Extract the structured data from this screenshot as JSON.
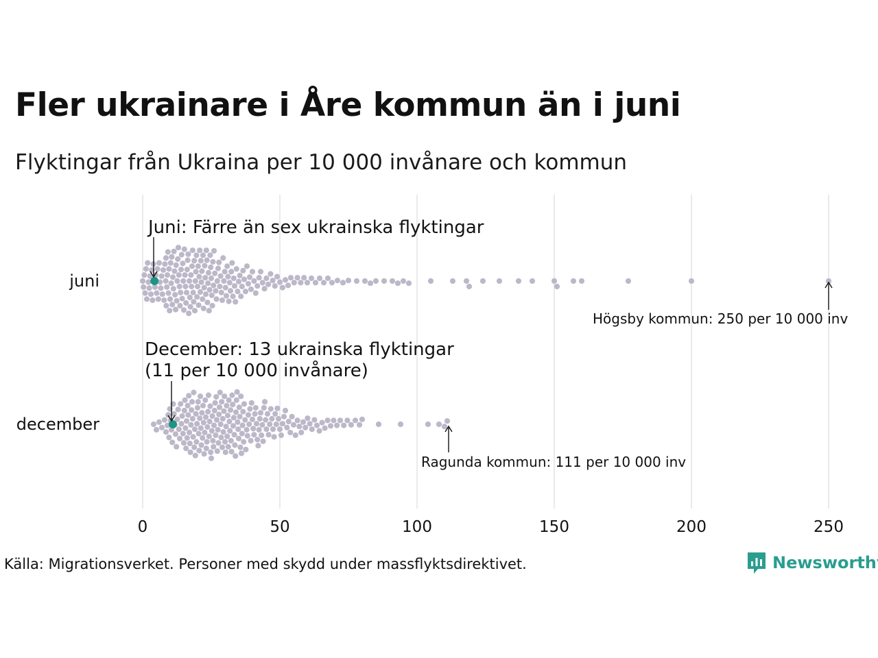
{
  "title": "Fler ukrainare i Åre kommun än i juni",
  "subtitle": "Flyktingar från Ukraina per 10 000 invånare och kommun",
  "source": "Källa: Migrationsverket. Personer med skydd under massflyktsdirektivet.",
  "brand": {
    "name": "Newsworthy",
    "color": "#2a9d8f"
  },
  "colors": {
    "dot": "#bcb8c9",
    "highlight": "#1f9486",
    "grid": "#d6d6d6"
  },
  "chart_data": {
    "type": "scatter",
    "subtype": "beeswarm",
    "x_ticks": [
      "0",
      "50",
      "100",
      "150",
      "200",
      "250"
    ],
    "x_tick_values": [
      0,
      50,
      100,
      150,
      200,
      250
    ],
    "xlim": [
      0,
      255
    ],
    "grid": "vertical",
    "categories": [
      "juni",
      "december"
    ],
    "series": [
      {
        "category": "juni",
        "highlight": {
          "value": 4.3
        },
        "values": [
          0.0,
          0.3,
          0.6,
          0.9,
          1.2,
          1.5,
          1.8,
          2.1,
          2.4,
          2.7,
          3.0,
          3.3,
          3.6,
          3.9,
          4.2,
          4.5,
          4.8,
          5.1,
          5.4,
          5.7,
          6.0,
          6.3,
          6.6,
          6.9,
          7.2,
          7.5,
          7.8,
          8.1,
          8.4,
          8.5,
          8.6,
          8.8,
          9.0,
          9.2,
          9.4,
          9.6,
          9.8,
          10.0,
          10.2,
          10.4,
          10.6,
          10.8,
          11.0,
          11.2,
          11.4,
          11.6,
          11.8,
          12.0,
          12.2,
          12.4,
          12.6,
          12.8,
          13.0,
          13.2,
          13.4,
          13.6,
          13.8,
          14.0,
          14.2,
          14.4,
          14.6,
          14.8,
          15.0,
          15.2,
          15.4,
          15.6,
          15.8,
          16.0,
          16.2,
          16.4,
          16.6,
          16.8,
          17.0,
          17.2,
          17.4,
          17.6,
          17.8,
          18.0,
          18.2,
          18.4,
          18.6,
          18.8,
          19.0,
          19.2,
          19.4,
          19.6,
          19.8,
          20.0,
          20.2,
          20.4,
          20.6,
          20.8,
          21.0,
          21.2,
          21.4,
          21.6,
          21.8,
          22.0,
          22.2,
          22.4,
          22.6,
          22.8,
          23.0,
          23.2,
          23.4,
          23.6,
          23.8,
          24.0,
          24.2,
          24.4,
          24.6,
          24.8,
          25.0,
          25.2,
          25.4,
          25.6,
          25.8,
          26.0,
          26.3,
          26.6,
          26.9,
          27.2,
          27.5,
          27.8,
          28.1,
          28.4,
          28.7,
          29.0,
          29.3,
          29.6,
          29.9,
          30.2,
          30.5,
          30.8,
          31.1,
          31.4,
          31.7,
          32.0,
          32.3,
          32.6,
          32.9,
          33.2,
          33.5,
          33.8,
          34.2,
          34.6,
          35.0,
          35.4,
          35.8,
          36.2,
          36.6,
          37.0,
          37.5,
          38.0,
          38.5,
          39.0,
          39.5,
          40.0,
          40.6,
          41.2,
          41.8,
          42.4,
          43.0,
          43.7,
          44.4,
          45.1,
          45.8,
          46.6,
          47.4,
          48.2,
          49.0,
          50.0,
          51.0,
          52.0,
          53.0,
          54.0,
          55.2,
          56.4,
          57.6,
          58.8,
          60.0,
          61.5,
          63.0,
          64.5,
          66.0,
          67.5,
          69.0,
          71.0,
          73.0,
          75.0,
          78.0,
          81.0,
          83.0,
          85.0,
          88.0,
          91.0,
          93.0,
          95.0,
          97.0,
          105.0,
          113.0,
          118.0,
          119.0,
          124.0,
          130.0,
          137.0,
          142.0,
          150.0,
          151.0,
          157.0,
          160.0,
          177.0,
          200.0,
          250.0
        ]
      },
      {
        "category": "december",
        "highlight": {
          "value": 11
        },
        "values": [
          4.0,
          5.0,
          6.0,
          7.0,
          8.0,
          8.5,
          9.0,
          9.3,
          9.6,
          9.9,
          10.2,
          10.5,
          10.8,
          11.1,
          11.4,
          11.7,
          12.0,
          12.3,
          12.6,
          12.9,
          13.2,
          13.5,
          13.8,
          14.1,
          14.4,
          14.7,
          15.0,
          15.2,
          15.4,
          15.6,
          15.8,
          16.0,
          16.2,
          16.4,
          16.6,
          16.8,
          17.0,
          17.2,
          17.4,
          17.6,
          17.8,
          18.0,
          18.2,
          18.4,
          18.6,
          18.8,
          19.0,
          19.2,
          19.4,
          19.6,
          19.8,
          20.0,
          20.2,
          20.4,
          20.6,
          20.8,
          21.0,
          21.2,
          21.4,
          21.6,
          21.8,
          22.0,
          22.2,
          22.4,
          22.6,
          22.8,
          23.0,
          23.2,
          23.4,
          23.6,
          23.8,
          24.0,
          24.2,
          24.4,
          24.6,
          24.8,
          25.0,
          25.2,
          25.4,
          25.6,
          25.8,
          26.0,
          26.2,
          26.4,
          26.6,
          26.8,
          27.0,
          27.2,
          27.4,
          27.6,
          27.8,
          28.0,
          28.2,
          28.4,
          28.6,
          28.8,
          29.0,
          29.2,
          29.4,
          29.6,
          29.8,
          30.0,
          30.2,
          30.4,
          30.6,
          30.8,
          31.0,
          31.2,
          31.4,
          31.6,
          31.8,
          32.0,
          32.2,
          32.4,
          32.6,
          32.8,
          33.0,
          33.2,
          33.4,
          33.6,
          33.8,
          34.0,
          34.2,
          34.4,
          34.6,
          34.8,
          35.0,
          35.2,
          35.4,
          35.6,
          35.8,
          36.0,
          36.2,
          36.4,
          36.6,
          36.8,
          37.0,
          37.3,
          37.6,
          37.9,
          38.2,
          38.5,
          38.8,
          39.1,
          39.4,
          39.7,
          40.0,
          40.3,
          40.6,
          40.9,
          41.2,
          41.5,
          41.8,
          42.1,
          42.4,
          42.7,
          43.0,
          43.3,
          43.6,
          43.9,
          44.2,
          44.5,
          44.8,
          45.1,
          45.5,
          45.9,
          46.3,
          46.7,
          47.1,
          47.5,
          47.9,
          48.3,
          48.7,
          49.1,
          49.5,
          50.0,
          50.5,
          51.0,
          51.5,
          52.0,
          52.6,
          53.2,
          53.8,
          54.4,
          55.0,
          55.7,
          56.4,
          57.1,
          57.8,
          58.5,
          59.3,
          60.1,
          60.9,
          61.7,
          62.6,
          63.5,
          64.4,
          65.4,
          66.4,
          67.4,
          68.5,
          69.6,
          70.8,
          72.0,
          73.3,
          74.6,
          76.0,
          77.5,
          79.0,
          80.0,
          86.0,
          94.0,
          104.0,
          108.0,
          110.0,
          111.0
        ]
      }
    ],
    "annotations": [
      {
        "category": "juni",
        "text": "Juni: Färre än sex ukrainska flyktingar",
        "target": 4.3
      },
      {
        "category": "juni",
        "text": "Högsby kommun: 250 per 10 000 inv",
        "target": 250
      },
      {
        "category": "december",
        "lines": [
          "December: 13 ukrainska flyktingar",
          "(11 per 10 000 invånare)"
        ],
        "target": 11
      },
      {
        "category": "december",
        "text": "Ragunda kommun: 111 per 10 000 inv",
        "target": 111
      }
    ]
  }
}
